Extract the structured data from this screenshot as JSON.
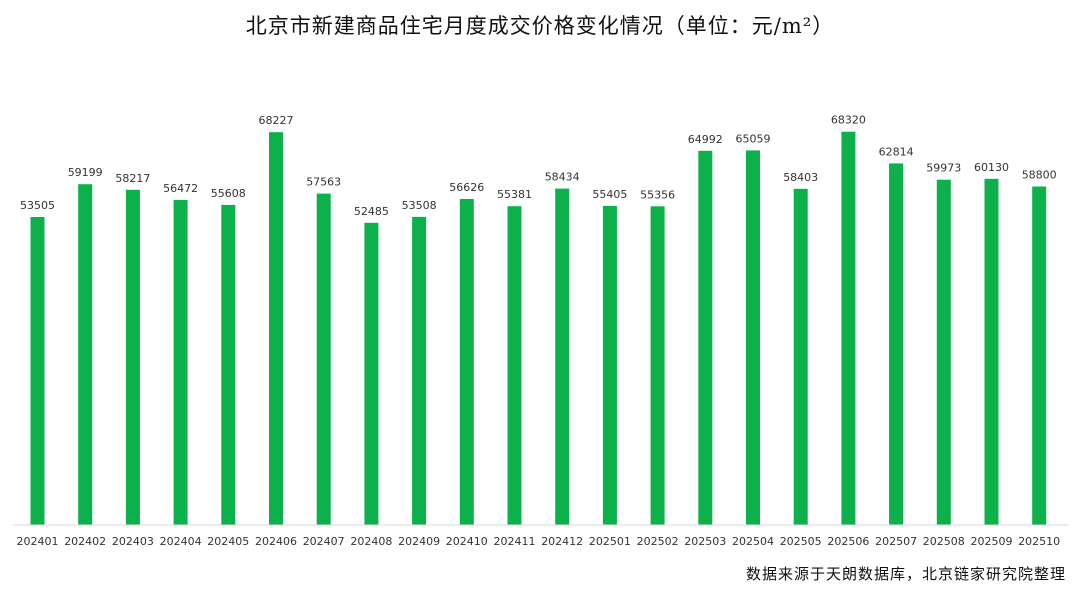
{
  "chart_data": {
    "type": "bar",
    "title": "北京市新建商品住宅月度成交价格变化情况（单位：元/m²）",
    "categories": [
      "202401",
      "202402",
      "202403",
      "202404",
      "202405",
      "202406",
      "202407",
      "202408",
      "202409",
      "202410",
      "202411",
      "202412",
      "202501",
      "202502",
      "202503",
      "202504",
      "202505",
      "202506",
      "202507",
      "202508",
      "202509",
      "202510"
    ],
    "values": [
      53505,
      59199,
      58217,
      56472,
      55608,
      68227,
      57563,
      52485,
      53508,
      56626,
      55381,
      58434,
      55405,
      55356,
      64992,
      65059,
      58403,
      68320,
      62814,
      59973,
      60130,
      58800
    ],
    "ylim": [
      0,
      70000
    ],
    "grid": false,
    "legend": "none",
    "bar_color": "#0db14b",
    "axis_color": "#d9d9d9"
  },
  "source_note": "数据来源于天朗数据库，北京链家研究院整理"
}
